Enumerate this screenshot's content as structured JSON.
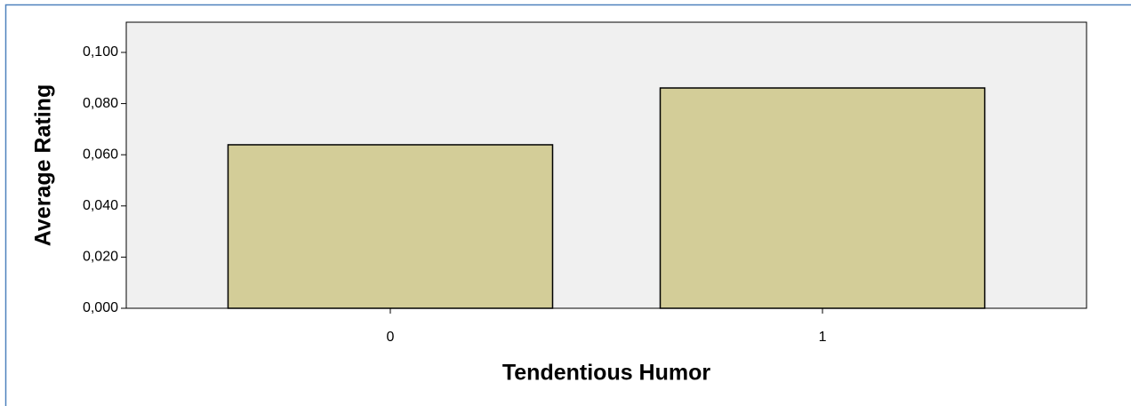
{
  "chart_data": {
    "type": "bar",
    "x_label": "Tendentious Humor",
    "y_label": "Average Rating",
    "categories": [
      "0",
      "1"
    ],
    "values": [
      0.0639,
      0.0861
    ],
    "color": "#d3cd98",
    "ylim": [
      0,
      0.1118
    ],
    "yticks": [
      {
        "value": 0,
        "label": "0,000"
      },
      {
        "value": 0.02,
        "label": "0,020"
      },
      {
        "value": 0.04,
        "label": "0,040"
      },
      {
        "value": 0.06,
        "label": "0,060"
      },
      {
        "value": 0.08,
        "label": "0,080"
      },
      {
        "value": 0.1,
        "label": "0,100"
      }
    ]
  }
}
